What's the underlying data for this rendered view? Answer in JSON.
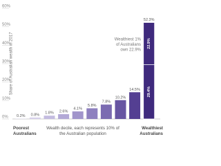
{
  "chart_data": {
    "type": "bar",
    "y_label": "Share of Australian wealth in 2017",
    "x_label": "Wealth decile, each represents 10% of the Australian population",
    "categories": [
      "Poorest Australians",
      null,
      null,
      null,
      null,
      null,
      null,
      null,
      null,
      "Wealthiest Australians"
    ],
    "values": [
      0.2,
      0.8,
      1.8,
      2.6,
      4.1,
      5.8,
      7.8,
      10.2,
      14.5,
      52.3
    ],
    "value_labels": [
      "0.2%",
      "0.8%",
      "1.8%",
      "2.6%",
      "4.1%",
      "5.8%",
      "7.8%",
      "10.2%",
      "14.5%",
      "52.3%"
    ],
    "colors": [
      "#e3dff0",
      "#d6d0ea",
      "#c4bce0",
      "#b3a9d6",
      "#a195cb",
      "#8e80bf",
      "#7b6bb1",
      "#6755a2",
      "#543f92",
      "#3f2a7d"
    ],
    "top_decile_split": {
      "values": [
        29.4,
        22.9
      ],
      "value_labels": [
        "29.4%",
        "22.9%"
      ],
      "color": "#3f2a7d"
    },
    "annotation": [
      "Wealthiest 1%",
      "of Australians",
      "own 22.9%"
    ],
    "ylim": [
      0,
      60
    ],
    "yticks": [
      {
        "value": 0,
        "label": "0%"
      },
      {
        "value": 10,
        "label": "10%"
      },
      {
        "value": 20,
        "label": "20%"
      },
      {
        "value": 30,
        "label": "30%"
      },
      {
        "value": 40,
        "label": "40%"
      },
      {
        "value": 50,
        "label": "50%"
      },
      {
        "value": 60,
        "label": "60%"
      }
    ]
  }
}
